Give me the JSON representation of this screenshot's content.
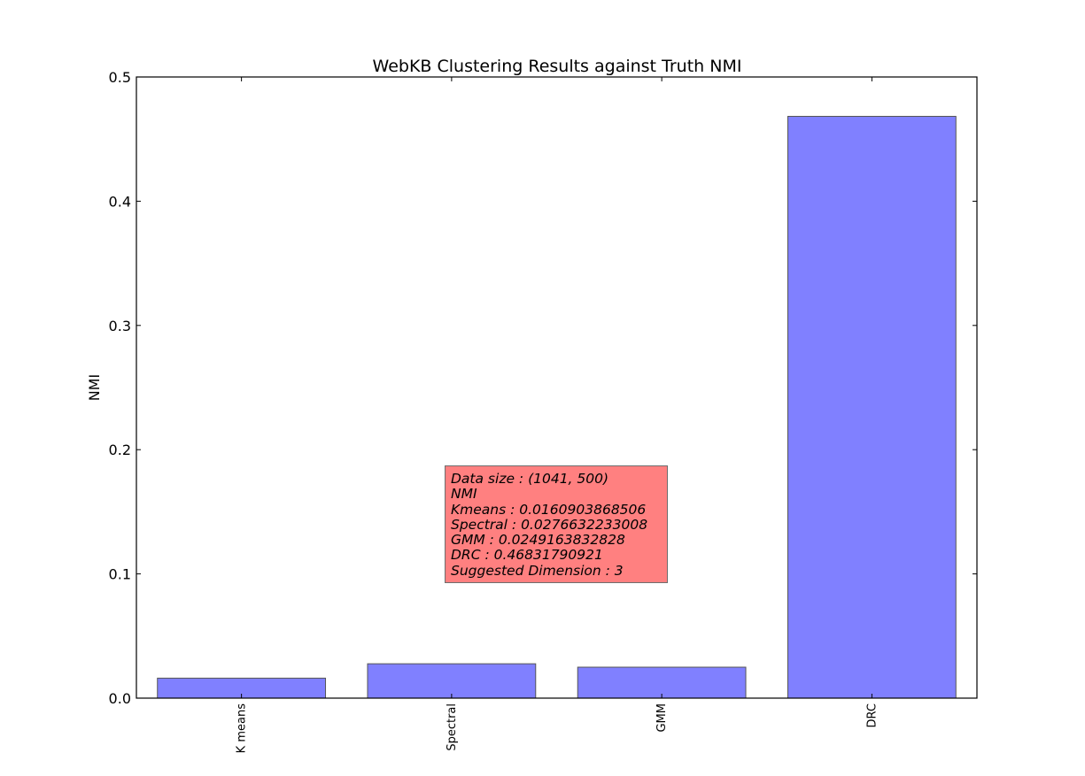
{
  "chart_data": {
    "type": "bar",
    "title": "WebKB Clustering Results against Truth NMI",
    "xlabel": "",
    "ylabel": "NMI",
    "categories": [
      "K means",
      "Spectral",
      "GMM",
      "DRC"
    ],
    "values": [
      0.0160903868506,
      0.0276632233008,
      0.0249163832828,
      0.46831790921
    ],
    "ylim": [
      0,
      0.5
    ],
    "yticks": [
      "0.0",
      "0.1",
      "0.2",
      "0.3",
      "0.4",
      "0.5"
    ],
    "bar_color": "#8080ff",
    "bar_edge_color": "#555555",
    "grid": false,
    "annotation": {
      "lines": [
        "Data size : (1041, 500)",
        "NMI",
        "Kmeans : 0.0160903868506",
        "Spectral : 0.0276632233008",
        "GMM : 0.0249163832828",
        "DRC : 0.46831790921",
        "Suggested Dimension : 3"
      ],
      "background_color": "#ff8080"
    }
  }
}
